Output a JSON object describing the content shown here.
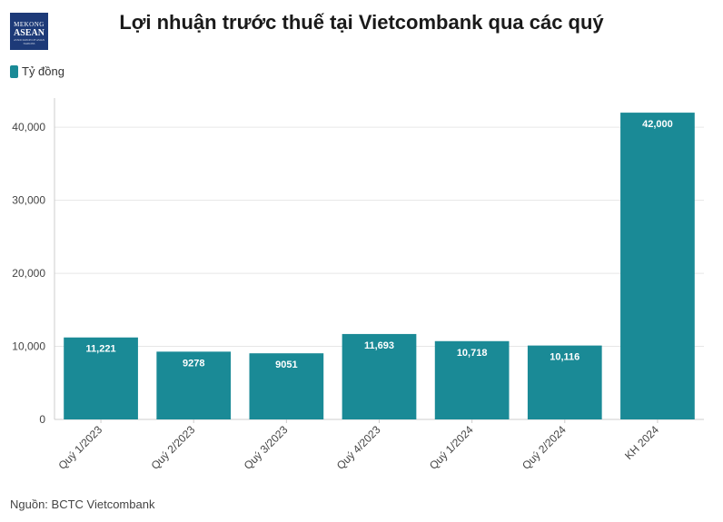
{
  "logo": {
    "line1": "MEKONG",
    "line2": "ASEAN",
    "line3": "ASSOCIATION OF ASIAN NATIONS"
  },
  "legend": {
    "label": "Tỷ đồng"
  },
  "source": "Nguồn: BCTC Vietcombank",
  "colors": {
    "bar": "#1a8a96",
    "grid": "#e6e6e6",
    "axis": "#cccccc"
  },
  "chart_data": {
    "type": "bar",
    "title": "Lợi nhuận trước thuế tại Vietcombank qua các quý",
    "categories": [
      "Quý 1/2023",
      "Quý 2/2023",
      "Quý 3/2023",
      "Quý 4/2023",
      "Quý 1/2024",
      "Quý 2/2024",
      "KH 2024"
    ],
    "series": [
      {
        "name": "Tỷ đồng",
        "values": [
          11221,
          9278,
          9051,
          11693,
          10718,
          10116,
          42000
        ]
      }
    ],
    "data_labels": [
      "11,221",
      "9278",
      "9051",
      "11,693",
      "10,718",
      "10,116",
      "42,000"
    ],
    "yticks": [
      0,
      10000,
      20000,
      30000,
      40000
    ],
    "ytick_labels": [
      "0",
      "10,000",
      "20,000",
      "30,000",
      "40,000"
    ],
    "ylim": [
      0,
      44000
    ],
    "grid": true,
    "legend_position": "top-left"
  }
}
